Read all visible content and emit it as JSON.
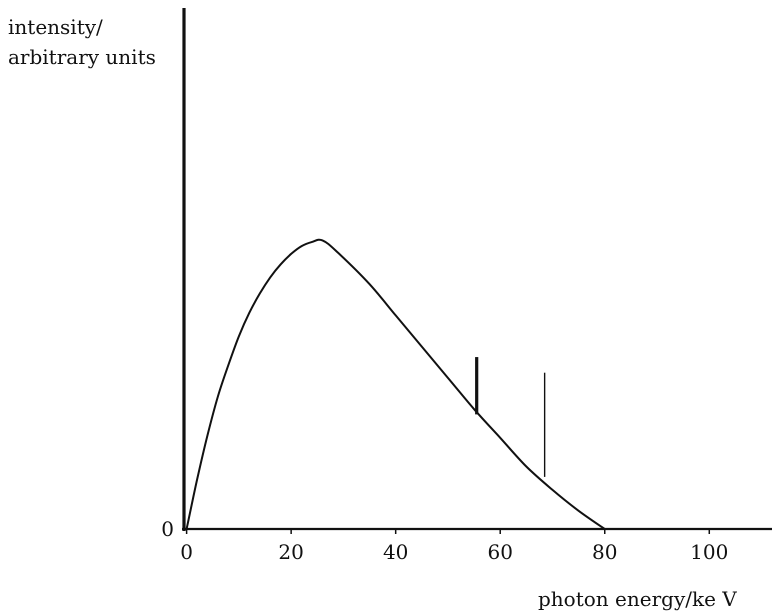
{
  "chart_data": {
    "type": "line",
    "ylabel_lines": [
      "intensity/",
      "arbitrary units"
    ],
    "xlabel": "photon energy/ke V",
    "x_ticks": [
      0,
      20,
      40,
      60,
      80,
      100
    ],
    "y_ticks": [
      0
    ],
    "xlim": [
      -0.5,
      112
    ],
    "ylim": [
      0,
      1
    ],
    "grid": false,
    "series": [
      {
        "x": [
          0,
          2,
          4,
          6,
          8,
          10,
          12,
          14,
          16,
          18,
          20,
          22,
          24,
          26,
          29,
          35,
          40,
          45,
          50,
          55,
          60,
          65,
          70,
          75,
          80
        ],
        "y": [
          0,
          0.095,
          0.18,
          0.255,
          0.315,
          0.37,
          0.415,
          0.452,
          0.483,
          0.508,
          0.528,
          0.543,
          0.551,
          0.554,
          0.53,
          0.47,
          0.41,
          0.35,
          0.29,
          0.23,
          0.175,
          0.12,
          0.075,
          0.035,
          0
        ]
      }
    ],
    "spikes": [
      {
        "x": 55.5,
        "y_from": 0.22,
        "y_to": 0.33,
        "weight": "thick"
      },
      {
        "x": 68.5,
        "y_from": 0.1,
        "y_to": 0.3,
        "weight": "thin"
      }
    ]
  }
}
